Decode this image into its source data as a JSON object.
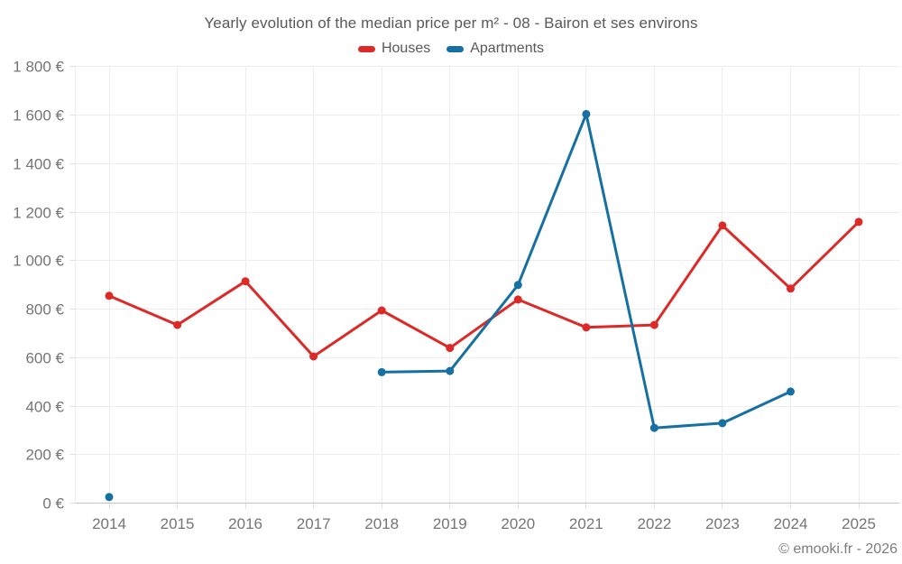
{
  "chart_data": {
    "type": "line",
    "title": "Yearly evolution of the median price per m² - 08 - Bairon et ses environs",
    "x": [
      2014,
      2015,
      2016,
      2017,
      2018,
      2019,
      2020,
      2021,
      2022,
      2023,
      2024,
      2025
    ],
    "series": [
      {
        "name": "Houses",
        "color": "#db2a27",
        "values": [
          855,
          735,
          915,
          605,
          795,
          640,
          840,
          725,
          735,
          1145,
          885,
          1160
        ]
      },
      {
        "name": "Apartments",
        "color": "#1670a2",
        "values": [
          25,
          null,
          null,
          null,
          540,
          545,
          900,
          1605,
          310,
          330,
          460,
          null
        ]
      }
    ],
    "xlabel": "",
    "ylabel": "",
    "ylim": [
      0,
      1800
    ],
    "ytick_step": 200,
    "ytick_labels": [
      "0 €",
      "200 €",
      "400 €",
      "600 €",
      "800 €",
      "1 000 €",
      "1 200 €",
      "1 400 €",
      "1 600 €",
      "1 800 €"
    ],
    "grid": true,
    "legend_position": "top"
  },
  "footer": {
    "copyright": "© emooki.fr - 2026"
  }
}
